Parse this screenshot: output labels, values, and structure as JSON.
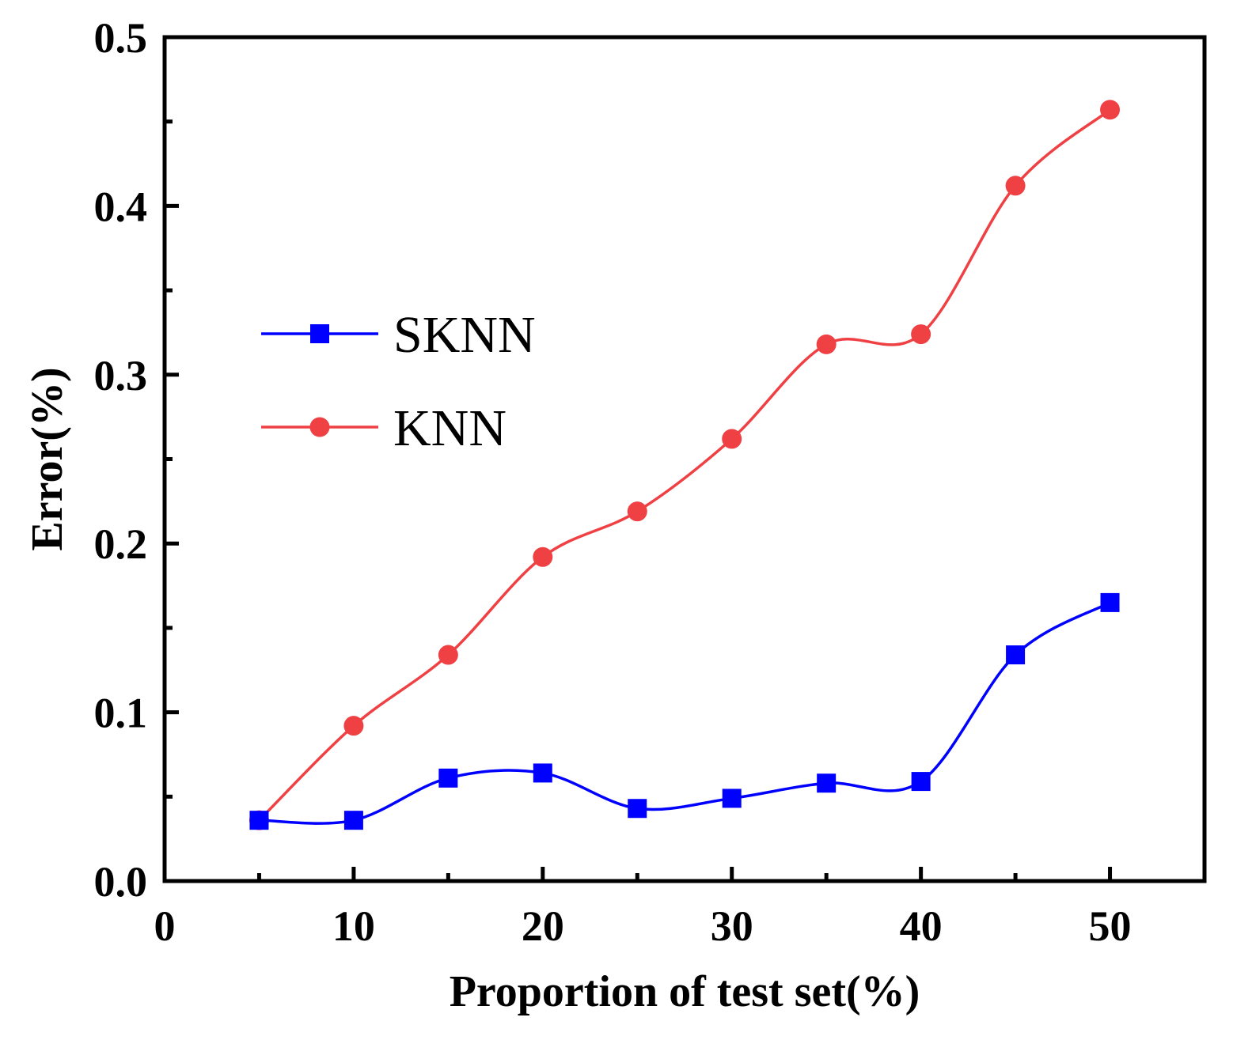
{
  "chart_data": {
    "type": "line",
    "title": "",
    "xlabel": "Proportion of test set(%)",
    "ylabel": "Error(%)",
    "xlim": [
      0,
      55
    ],
    "ylim": [
      0,
      0.5
    ],
    "x_ticks": [
      0,
      10,
      20,
      30,
      40,
      50
    ],
    "x_tick_labels": [
      "0",
      "10",
      "20",
      "30",
      "40",
      "50"
    ],
    "y_ticks": [
      0,
      0.1,
      0.2,
      0.3,
      0.4,
      0.5
    ],
    "y_tick_labels": [
      "0.0",
      "0.1",
      "0.2",
      "0.3",
      "0.4",
      "0.5"
    ],
    "grid": false,
    "legend_position": "center-left",
    "x": [
      5,
      10,
      15,
      20,
      25,
      30,
      35,
      40,
      45,
      50
    ],
    "series": [
      {
        "name": "SKNN",
        "marker": "square",
        "color": "#0000ff",
        "values": [
          0.036,
          0.036,
          0.061,
          0.064,
          0.043,
          0.049,
          0.058,
          0.059,
          0.134,
          0.165
        ]
      },
      {
        "name": "KNN",
        "marker": "circle",
        "color": "#ef4044",
        "values": [
          0.036,
          0.092,
          0.134,
          0.192,
          0.219,
          0.262,
          0.318,
          0.324,
          0.412,
          0.457
        ]
      }
    ]
  }
}
